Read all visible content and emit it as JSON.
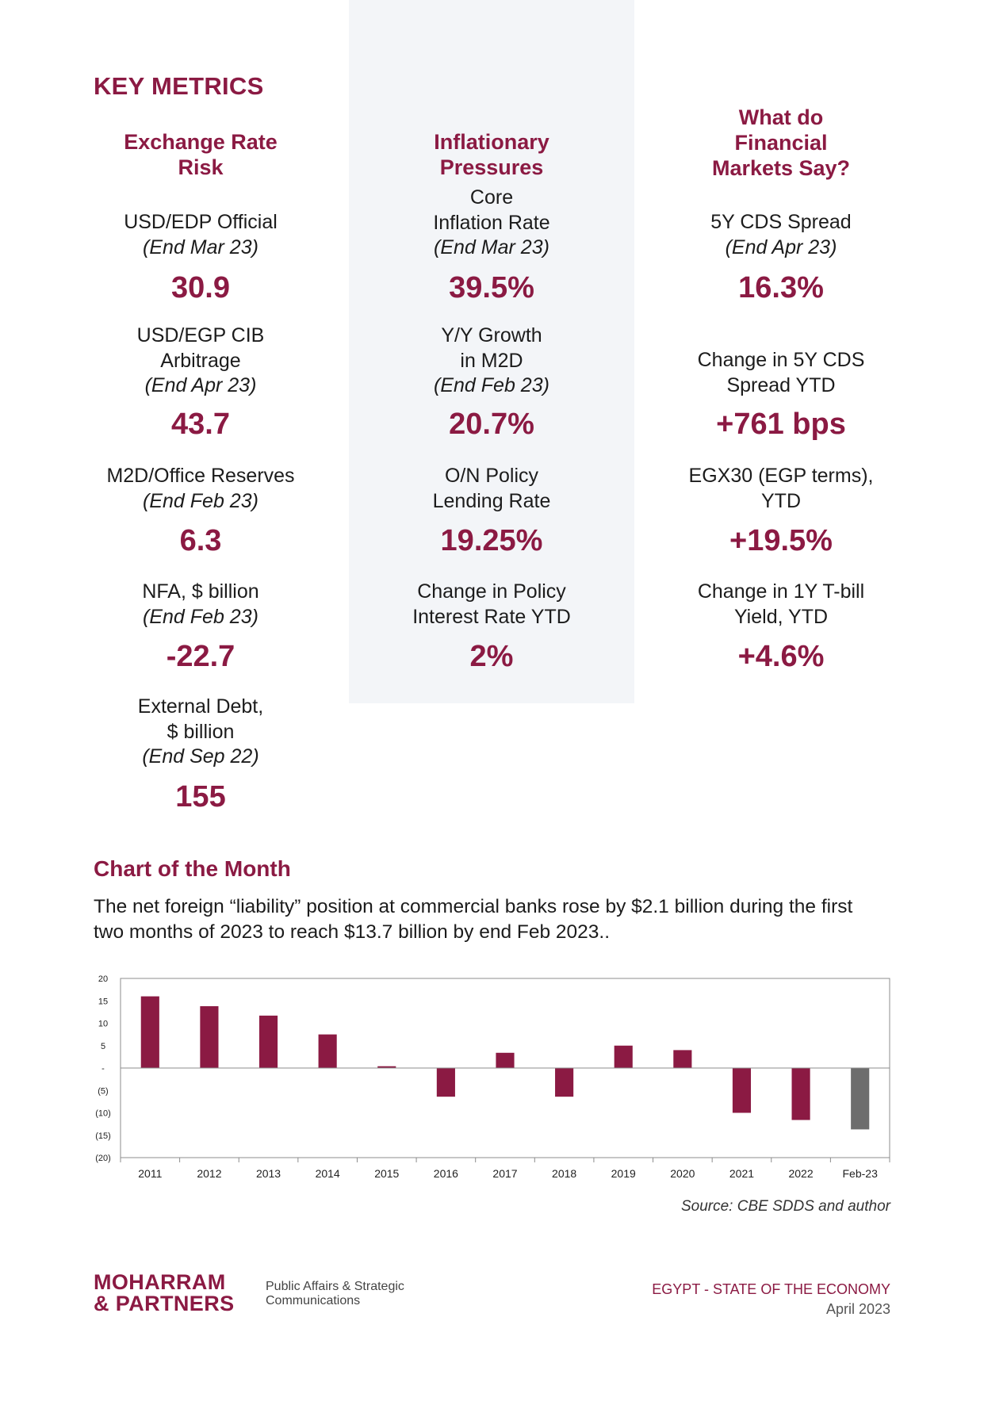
{
  "page_title": "KEY METRICS",
  "columns": [
    {
      "heading": [
        "Exchange Rate",
        "Risk"
      ],
      "metrics": [
        {
          "label": [
            "USD/EDP Official"
          ],
          "period": "(End Mar 23)",
          "value": "30.9"
        },
        {
          "label": [
            "USD/EGP CIB",
            "Arbitrage"
          ],
          "period": "(End Apr 23)",
          "value": "43.7"
        },
        {
          "label": [
            "M2D/Office Reserves"
          ],
          "period": "(End Feb 23)",
          "value": "6.3"
        },
        {
          "label": [
            "NFA, $ billion"
          ],
          "period": "(End Feb 23)",
          "value": "-22.7"
        },
        {
          "label": [
            "External Debt,",
            "$ billion"
          ],
          "period": "(End Sep 22)",
          "value": "155"
        }
      ]
    },
    {
      "heading": [
        "Inflationary",
        "Pressures"
      ],
      "metrics": [
        {
          "label": [
            "Core",
            "Inflation Rate"
          ],
          "period": "(End Mar 23)",
          "value": "39.5%"
        },
        {
          "label": [
            "Y/Y Growth",
            "in M2D"
          ],
          "period": "(End Feb 23)",
          "value": "20.7%"
        },
        {
          "label": [
            "O/N Policy",
            "Lending Rate"
          ],
          "period": "",
          "value": "19.25%"
        },
        {
          "label": [
            "Change in Policy",
            "Interest Rate YTD"
          ],
          "period": "",
          "value": "2%"
        }
      ]
    },
    {
      "heading": [
        "What do",
        "Financial",
        "Markets Say?"
      ],
      "metrics": [
        {
          "label": [
            "5Y CDS Spread"
          ],
          "period": "(End Apr 23)",
          "value": "16.3%"
        },
        {
          "label": [
            "Change in 5Y CDS",
            "Spread YTD"
          ],
          "period": "",
          "value": "+761 bps"
        },
        {
          "label": [
            "EGX30 (EGP terms),",
            "YTD"
          ],
          "period": "",
          "value": "+19.5%"
        },
        {
          "label": [
            "Change in 1Y T-bill",
            "Yield, YTD"
          ],
          "period": "",
          "value": "+4.6%"
        }
      ]
    }
  ],
  "chart_section": {
    "title": "Chart of the Month",
    "description": "The net foreign “liability” position at commercial banks rose by $2.1 billion during the first two months of 2023 to reach $13.7 billion by end Feb 2023..",
    "source": "Source: CBE SDDS and author"
  },
  "chart_data": {
    "type": "bar",
    "categories": [
      "2011",
      "2012",
      "2013",
      "2014",
      "2015",
      "2016",
      "2017",
      "2018",
      "2019",
      "2020",
      "2021",
      "2022",
      "Feb-23"
    ],
    "values": [
      16,
      13.8,
      11.7,
      7.5,
      0.4,
      -6.4,
      3.4,
      -6.4,
      5,
      4,
      -10,
      -11.6,
      -13.7
    ],
    "ylim": [
      -20,
      20
    ],
    "yticks": [
      20,
      15,
      10,
      5,
      0,
      -5,
      -10,
      -15,
      -20
    ],
    "ytick_labels": [
      "20",
      "15",
      "10",
      "5",
      "-",
      "(5)",
      "(10)",
      "(15)",
      "(20)"
    ],
    "colors": {
      "default": "#8b1a43",
      "highlight": "#6d6d6d"
    },
    "highlight_index": 12,
    "grid": false,
    "xlabel": "",
    "ylabel": ""
  },
  "footer": {
    "logo_line1": "MOHARRAM",
    "logo_line2": "& PARTNERS",
    "tagline_line1": "Public Affairs & Strategic",
    "tagline_line2": "Communications",
    "report_title": "EGYPT - STATE OF THE ECONOMY",
    "report_date": "April 2023"
  }
}
